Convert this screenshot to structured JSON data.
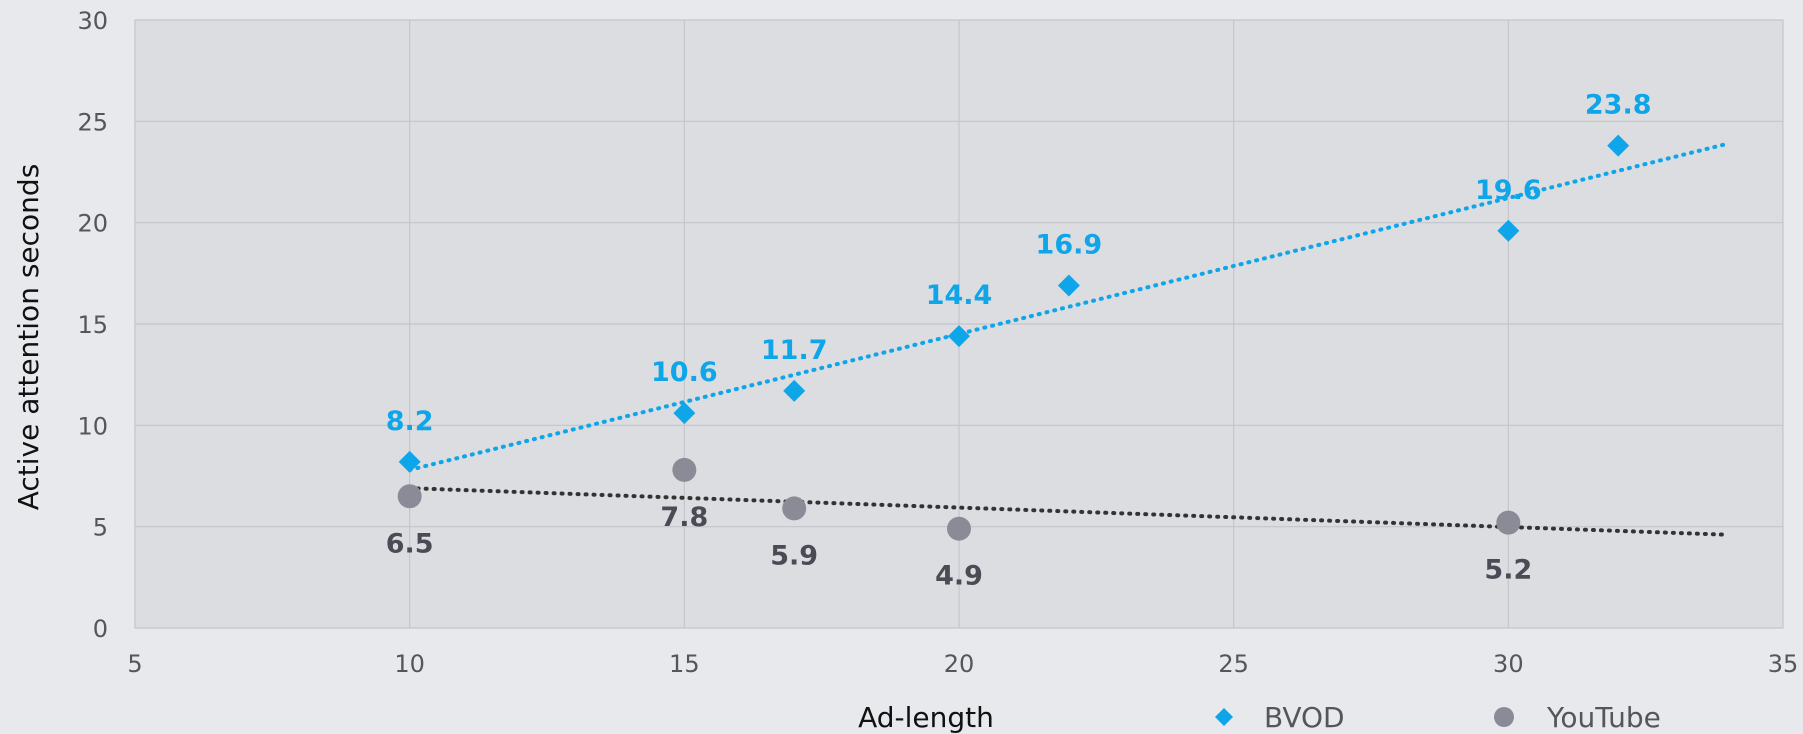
{
  "chart_data": {
    "type": "scatter",
    "xlabel": "Ad-length",
    "ylabel": "Active attention seconds",
    "xlim": [
      5,
      35
    ],
    "ylim": [
      0,
      30
    ],
    "xticks": [
      5,
      10,
      15,
      20,
      25,
      30,
      35
    ],
    "yticks": [
      0,
      5,
      10,
      15,
      20,
      25,
      30
    ],
    "grid": true,
    "legend_position": "bottom-right",
    "series": [
      {
        "name": "BVOD",
        "marker": "diamond",
        "color": "#0ea5e9",
        "points": [
          {
            "x": 10,
            "y": 8.2,
            "label": "8.2"
          },
          {
            "x": 15,
            "y": 10.6,
            "label": "10.6"
          },
          {
            "x": 17,
            "y": 11.7,
            "label": "11.7"
          },
          {
            "x": 20,
            "y": 14.4,
            "label": "14.4"
          },
          {
            "x": 22,
            "y": 16.9,
            "label": "16.9"
          },
          {
            "x": 30,
            "y": 19.6,
            "label": "19.6"
          },
          {
            "x": 32,
            "y": 23.8,
            "label": "23.8"
          }
        ],
        "trendline": {
          "style": "dotted",
          "color": "#0ea5e9",
          "x": [
            10,
            34
          ],
          "y": [
            7.8,
            23.9
          ]
        }
      },
      {
        "name": "YouTube",
        "marker": "circle",
        "color": "#8a8b96",
        "label_color": "#4a4b55",
        "points": [
          {
            "x": 10,
            "y": 6.5,
            "label": "6.5"
          },
          {
            "x": 15,
            "y": 7.8,
            "label": "7.8"
          },
          {
            "x": 17,
            "y": 5.9,
            "label": "5.9"
          },
          {
            "x": 20,
            "y": 4.9,
            "label": "4.9"
          },
          {
            "x": 30,
            "y": 5.2,
            "label": "5.2"
          }
        ],
        "trendline": {
          "style": "dotted",
          "color": "#333333",
          "x": [
            10,
            34
          ],
          "y": [
            6.9,
            4.6
          ]
        }
      }
    ]
  }
}
